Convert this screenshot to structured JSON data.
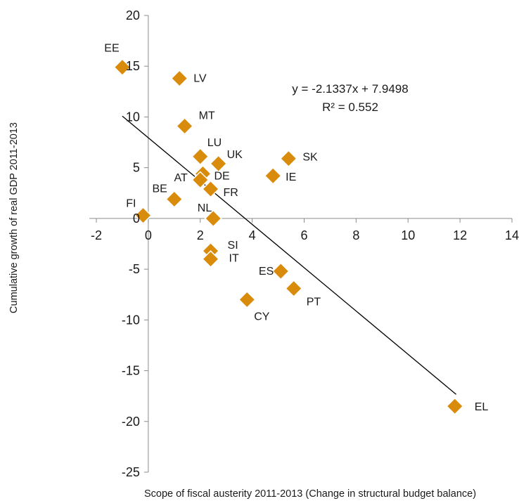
{
  "chart_data": {
    "type": "scatter",
    "xlabel": "Scope of fiscal austerity 2011-2013 (Change in structural budget balance)",
    "ylabel": "Cumulative growth of real GDP 2011-2013",
    "xlim": [
      -2,
      14
    ],
    "ylim": [
      -25,
      20
    ],
    "xticks": [
      "-2",
      "0",
      "2",
      "4",
      "6",
      "8",
      "10",
      "12",
      "14"
    ],
    "yticks": [
      "20",
      "15",
      "10",
      "5",
      "0",
      "-5",
      "-10",
      "-15",
      "-20",
      "-25"
    ],
    "marker_color": "#d98c0c",
    "grid": false,
    "points": [
      {
        "label": "EE",
        "x": -1.0,
        "y": 14.9
      },
      {
        "label": "LV",
        "x": 1.2,
        "y": 13.8
      },
      {
        "label": "MT",
        "x": 1.4,
        "y": 9.1
      },
      {
        "label": "LU",
        "x": 2.0,
        "y": 6.1
      },
      {
        "label": "UK",
        "x": 2.7,
        "y": 5.4
      },
      {
        "label": "DE",
        "x": 2.1,
        "y": 4.4
      },
      {
        "label": "AT",
        "x": 2.0,
        "y": 3.8
      },
      {
        "label": "FR",
        "x": 2.4,
        "y": 2.9
      },
      {
        "label": "BE",
        "x": 1.0,
        "y": 1.9
      },
      {
        "label": "FI",
        "x": -0.2,
        "y": 0.3
      },
      {
        "label": "NL",
        "x": 2.5,
        "y": 0.0
      },
      {
        "label": "SK",
        "x": 5.4,
        "y": 5.9
      },
      {
        "label": "IE",
        "x": 4.8,
        "y": 4.2
      },
      {
        "label": "SI",
        "x": 2.4,
        "y": -3.2
      },
      {
        "label": "IT",
        "x": 2.4,
        "y": -4.0
      },
      {
        "label": "ES",
        "x": 5.1,
        "y": -5.2
      },
      {
        "label": "PT",
        "x": 5.6,
        "y": -6.9
      },
      {
        "label": "CY",
        "x": 3.8,
        "y": -8.0
      },
      {
        "label": "EL",
        "x": 11.8,
        "y": -18.5
      }
    ],
    "trendline": {
      "equation": "y = -2.1337x + 7.9498",
      "r_squared": "R² = 0.552",
      "slope": -2.1337,
      "intercept": 7.9498,
      "x_range": [
        -1.0,
        11.85
      ]
    }
  }
}
